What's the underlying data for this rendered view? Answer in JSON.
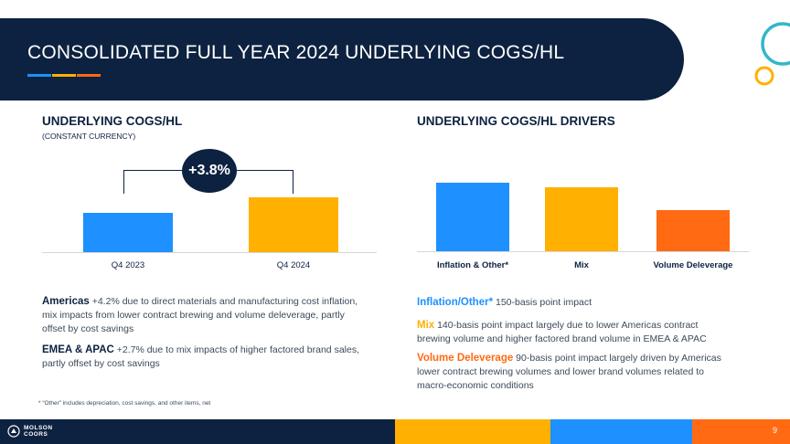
{
  "header": {
    "title": "CONSOLIDATED FULL YEAR 2024 UNDERLYING COGS/HL",
    "underline_colors": [
      "#1e90ff",
      "#ffb000",
      "#ff6a13"
    ]
  },
  "colors": {
    "navy": "#0d2240",
    "blue": "#1e90ff",
    "yellow": "#ffb000",
    "orange": "#ff6a13",
    "teal": "#31b7c9"
  },
  "left_chart": {
    "title": "UNDERLYING COGS/HL",
    "subtitle": "(CONSTANT CURRENCY)",
    "growth_label": "+3.8%",
    "chart_data": {
      "type": "bar",
      "categories": [
        "Q4 2023",
        "Q4 2024"
      ],
      "values": [
        100,
        141
      ],
      "colors": [
        "#1e90ff",
        "#ffb000"
      ],
      "ylim": [
        0,
        150
      ],
      "note": "relative bar heights; no axis values shown"
    }
  },
  "right_chart": {
    "title": "UNDERLYING COGS/HL DRIVERS",
    "chart_data": {
      "type": "bar",
      "categories": [
        "Inflation & Other*",
        "Mix",
        "Volume Deleverage"
      ],
      "values": [
        150,
        140,
        90
      ],
      "colors": [
        "#1e90ff",
        "#ffb000",
        "#ff6a13"
      ],
      "ylim": [
        0,
        160
      ],
      "unit": "basis points"
    }
  },
  "left_text": {
    "americas_lead": "Americas",
    "americas_body": " +4.2% due to direct materials and manufacturing cost inflation, mix impacts from lower contract brewing and volume deleverage, partly offset by cost savings",
    "emea_lead": "EMEA & APAC",
    "emea_body": " +2.7% due to mix impacts of higher factored brand sales, partly offset by cost savings"
  },
  "right_text": {
    "inflation_lead": "Inflation/Other*",
    "inflation_body": " 150-basis point impact",
    "mix_lead": "Mix",
    "mix_body": " 140-basis point impact largely due to lower Americas contract brewing volume and higher factored brand volume in EMEA & APAC",
    "volume_lead": "Volume Deleverage",
    "volume_body": " 90-basis point impact largely driven by Americas lower contract brewing volumes and lower brand volumes related to macro-economic conditions"
  },
  "footnote": "* “Other” includes depreciation, cost savings, and other items, net",
  "footer": {
    "logo_line1": "MOLSON",
    "logo_line2": "COORS",
    "page_number": "9",
    "stripe_colors": [
      "#0d2240",
      "#ffb000",
      "#1e90ff",
      "#ff6a13"
    ]
  }
}
